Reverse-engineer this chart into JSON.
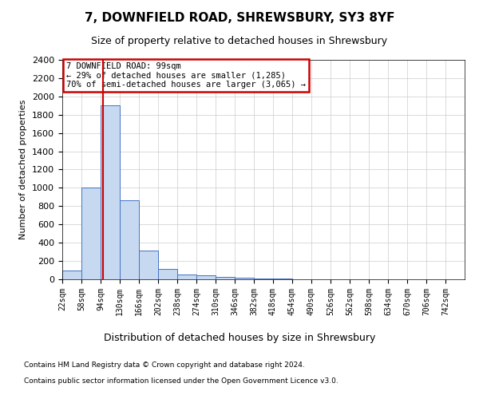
{
  "title1": "7, DOWNFIELD ROAD, SHREWSBURY, SY3 8YF",
  "title2": "Size of property relative to detached houses in Shrewsbury",
  "xlabel": "Distribution of detached houses by size in Shrewsbury",
  "ylabel": "Number of detached properties",
  "annotation_line1": "7 DOWNFIELD ROAD: 99sqm",
  "annotation_line2": "← 29% of detached houses are smaller (1,285)",
  "annotation_line3": "70% of semi-detached houses are larger (3,065) →",
  "property_size": 99,
  "bin_labels": [
    "22sqm",
    "58sqm",
    "94sqm",
    "130sqm",
    "166sqm",
    "202sqm",
    "238sqm",
    "274sqm",
    "310sqm",
    "346sqm",
    "382sqm",
    "418sqm",
    "454sqm",
    "490sqm",
    "526sqm",
    "562sqm",
    "598sqm",
    "634sqm",
    "670sqm",
    "706sqm",
    "742sqm"
  ],
  "bin_edges": [
    22,
    58,
    94,
    130,
    166,
    202,
    238,
    274,
    310,
    346,
    382,
    418,
    454,
    490,
    526,
    562,
    598,
    634,
    670,
    706,
    742
  ],
  "bar_values": [
    100,
    1000,
    1900,
    860,
    310,
    115,
    50,
    40,
    30,
    20,
    5,
    5,
    3,
    2,
    1,
    1,
    1,
    1,
    0,
    0,
    0
  ],
  "bar_color": "#c6d9f0",
  "bar_edge_color": "#4472c4",
  "vline_x": 99,
  "vline_color": "#cc0000",
  "annotation_box_color": "#cc0000",
  "ylim": [
    0,
    2400
  ],
  "yticks": [
    0,
    200,
    400,
    600,
    800,
    1000,
    1200,
    1400,
    1600,
    1800,
    2000,
    2200,
    2400
  ],
  "footer1": "Contains HM Land Registry data © Crown copyright and database right 2024.",
  "footer2": "Contains public sector information licensed under the Open Government Licence v3.0.",
  "bg_color": "#ffffff",
  "grid_color": "#cccccc",
  "title1_fontsize": 11,
  "title2_fontsize": 9,
  "ylabel_fontsize": 8,
  "xlabel_fontsize": 9,
  "tick_fontsize": 8,
  "xtick_fontsize": 7,
  "ann_fontsize": 7.5,
  "footer_fontsize": 6.5
}
